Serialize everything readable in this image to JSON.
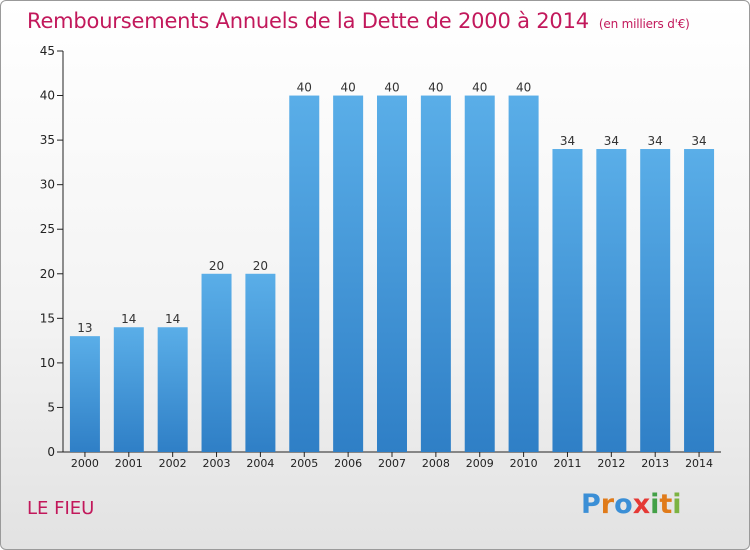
{
  "header": {
    "title": "Remboursements Annuels de la Dette de 2000 à 2014",
    "unit": "(en milliers d'€)"
  },
  "footer": {
    "commune": "LE FIEU",
    "logo_text": "Proxiti"
  },
  "colors": {
    "title": "#c2185b",
    "bar_top": "#5aaee8",
    "bar_bottom": "#2f7fc6",
    "axis": "#222222",
    "grid": "#cccccc"
  },
  "chart_data": {
    "type": "bar",
    "categories": [
      "2000",
      "2001",
      "2002",
      "2003",
      "2004",
      "2005",
      "2006",
      "2007",
      "2008",
      "2009",
      "2010",
      "2011",
      "2012",
      "2013",
      "2014"
    ],
    "values": [
      13,
      14,
      14,
      20,
      20,
      40,
      40,
      40,
      40,
      40,
      40,
      34,
      34,
      34,
      34
    ],
    "title": "Remboursements Annuels de la Dette de 2000 à 2014",
    "ylim": [
      0,
      45
    ],
    "yticks": [
      0,
      5,
      10,
      15,
      20,
      25,
      30,
      35,
      40,
      45
    ],
    "grid": false,
    "data_labels": true
  }
}
